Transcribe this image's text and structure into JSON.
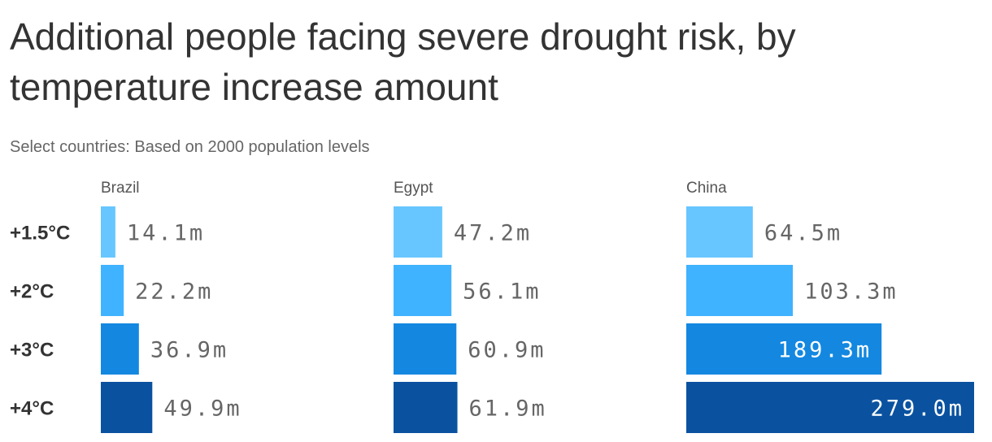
{
  "chart_data": {
    "type": "bar",
    "orientation": "horizontal",
    "title": "Additional people facing severe drought risk, by temperature increase amount",
    "subtitle": "Select countries: Based on 2000 population levels",
    "categories": [
      "+1.5°C",
      "+2°C",
      "+3°C",
      "+4°C"
    ],
    "unit_suffix": "m",
    "series": [
      {
        "name": "Brazil",
        "values": [
          14.1,
          22.2,
          36.9,
          49.9
        ]
      },
      {
        "name": "Egypt",
        "values": [
          47.2,
          56.1,
          60.9,
          61.9
        ]
      },
      {
        "name": "China",
        "values": [
          64.5,
          103.3,
          189.3,
          279.0
        ]
      }
    ],
    "value_labels": [
      [
        "14.1m",
        "22.2m",
        "36.9m",
        "49.9m"
      ],
      [
        "47.2m",
        "56.1m",
        "60.9m",
        "61.9m"
      ],
      [
        "64.5m",
        "103.3m",
        "189.3m",
        "279.0m"
      ]
    ],
    "bar_colors": [
      "#67c6ff",
      "#3fb3ff",
      "#1488e0",
      "#0a52a0"
    ],
    "xlim": [
      0,
      279
    ],
    "grid": false,
    "legend": "none"
  }
}
